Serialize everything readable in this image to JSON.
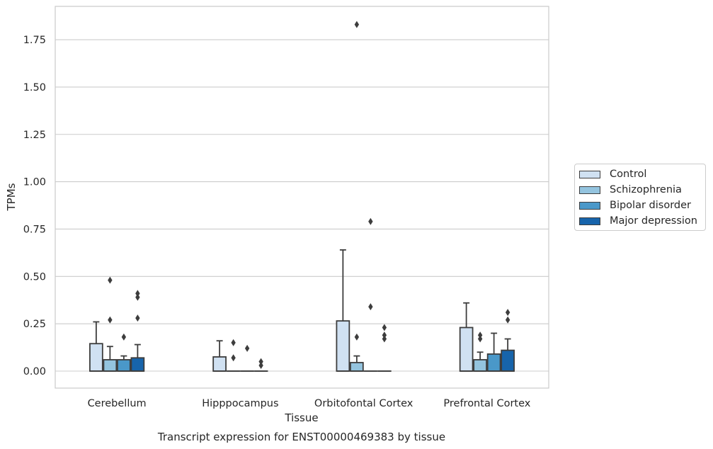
{
  "chart_data": {
    "type": "box",
    "ylabel": "TPMs",
    "xlabel": "Tissue",
    "caption": "Transcript expression for ENST00000469383 by tissue",
    "ylim": [
      -0.09,
      1.92
    ],
    "yticks": [
      0.0,
      0.25,
      0.5,
      0.75,
      1.0,
      1.25,
      1.5,
      1.75
    ],
    "ytick_labels": [
      "0.00",
      "0.25",
      "0.50",
      "0.75",
      "1.00",
      "1.25",
      "1.50",
      "1.75"
    ],
    "grid": "horizontal",
    "legend_position": "right",
    "categories": [
      "Cerebellum",
      "Hipppocampus",
      "Orbitofontal Cortex",
      "Prefrontal Cortex"
    ],
    "series": [
      {
        "name": "Control",
        "color": "#d0e1f2",
        "boxes": [
          {
            "q1": 0.0,
            "median": 0.0,
            "q3": 0.145,
            "wlo": 0.0,
            "whi": 0.26,
            "fliers": []
          },
          {
            "q1": 0.0,
            "median": 0.0,
            "q3": 0.075,
            "wlo": 0.0,
            "whi": 0.16,
            "fliers": []
          },
          {
            "q1": 0.0,
            "median": 0.0,
            "q3": 0.265,
            "wlo": 0.0,
            "whi": 0.64,
            "fliers": []
          },
          {
            "q1": 0.0,
            "median": 0.0,
            "q3": 0.23,
            "wlo": 0.0,
            "whi": 0.36,
            "fliers": []
          }
        ]
      },
      {
        "name": "Schizophrenia",
        "color": "#94c4df",
        "boxes": [
          {
            "q1": 0.0,
            "median": 0.0,
            "q3": 0.06,
            "wlo": 0.0,
            "whi": 0.13,
            "fliers": [
              0.27,
              0.48
            ]
          },
          {
            "q1": 0.0,
            "median": 0.0,
            "q3": 0.0,
            "wlo": 0.0,
            "whi": 0.0,
            "fliers": [
              0.07,
              0.15
            ]
          },
          {
            "q1": 0.0,
            "median": 0.0,
            "q3": 0.045,
            "wlo": 0.0,
            "whi": 0.08,
            "fliers": [
              0.18,
              1.83
            ]
          },
          {
            "q1": 0.0,
            "median": 0.0,
            "q3": 0.06,
            "wlo": 0.0,
            "whi": 0.1,
            "fliers": [
              0.17,
              0.19
            ]
          }
        ]
      },
      {
        "name": "Bipolar disorder",
        "color": "#4a98c9",
        "boxes": [
          {
            "q1": 0.0,
            "median": 0.0,
            "q3": 0.06,
            "wlo": 0.0,
            "whi": 0.08,
            "fliers": [
              0.18
            ]
          },
          {
            "q1": 0.0,
            "median": 0.0,
            "q3": 0.0,
            "wlo": 0.0,
            "whi": 0.0,
            "fliers": [
              0.12
            ]
          },
          {
            "q1": 0.0,
            "median": 0.0,
            "q3": 0.0,
            "wlo": 0.0,
            "whi": 0.0,
            "fliers": [
              0.34,
              0.79
            ]
          },
          {
            "q1": 0.0,
            "median": 0.0,
            "q3": 0.09,
            "wlo": 0.0,
            "whi": 0.2,
            "fliers": []
          }
        ]
      },
      {
        "name": "Major depression",
        "color": "#1764ab",
        "boxes": [
          {
            "q1": 0.0,
            "median": 0.0,
            "q3": 0.07,
            "wlo": 0.0,
            "whi": 0.14,
            "fliers": [
              0.28,
              0.39,
              0.41
            ]
          },
          {
            "q1": 0.0,
            "median": 0.0,
            "q3": 0.0,
            "wlo": 0.0,
            "whi": 0.0,
            "fliers": [
              0.03,
              0.05
            ]
          },
          {
            "q1": 0.0,
            "median": 0.0,
            "q3": 0.0,
            "wlo": 0.0,
            "whi": 0.0,
            "fliers": [
              0.17,
              0.19,
              0.23
            ]
          },
          {
            "q1": 0.0,
            "median": 0.0,
            "q3": 0.11,
            "wlo": 0.0,
            "whi": 0.17,
            "fliers": [
              0.27,
              0.31
            ]
          }
        ]
      }
    ]
  }
}
